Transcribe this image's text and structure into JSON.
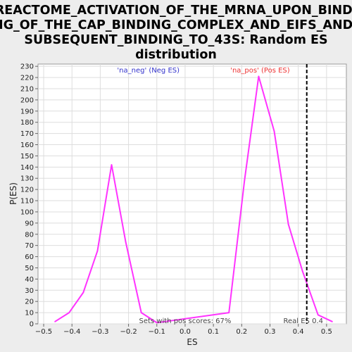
{
  "chart_data": {
    "type": "line",
    "title_lines": [
      "REACTOME_ACTIVATION_OF_THE_MRNA_UPON_BINDI",
      "NG_OF_THE_CAP_BINDING_COMPLEX_AND_EIFS_AND_",
      "SUBSEQUENT_BINDING_TO_43S: Random ES",
      "distribution"
    ],
    "xlabel": "ES",
    "ylabel": "P(ES)",
    "xlim": [
      -0.52,
      0.57
    ],
    "ylim": [
      0,
      232
    ],
    "x_ticks": [
      -0.5,
      -0.4,
      -0.3,
      -0.2,
      -0.1,
      0.0,
      0.1,
      0.2,
      0.3,
      0.4,
      0.5
    ],
    "x_tick_labels": [
      "−0.5",
      "−0.4",
      "−0.3",
      "−0.2",
      "−0.1",
      "0.0",
      "0.1",
      "0.2",
      "0.3",
      "0.4",
      "0.5"
    ],
    "y_ticks": [
      0,
      10,
      20,
      30,
      40,
      50,
      60,
      70,
      80,
      90,
      100,
      110,
      120,
      130,
      140,
      150,
      160,
      170,
      180,
      190,
      200,
      210,
      220,
      230
    ],
    "grid": true,
    "series": [
      {
        "color": "#ff33ff",
        "x": [
          -0.46,
          -0.41,
          -0.36,
          -0.31,
          -0.26,
          -0.21,
          -0.155,
          -0.1,
          0.155,
          0.21,
          0.26,
          0.315,
          0.365,
          0.415,
          0.47,
          0.52
        ],
        "y": [
          2,
          10,
          28,
          65,
          142,
          73,
          10,
          1,
          10,
          128,
          221,
          172,
          89,
          47,
          8,
          2
        ]
      }
    ],
    "real_es": 0.43,
    "legend": [
      {
        "label": "'na_neg' (Neg ES)",
        "color": "#3333cc"
      },
      {
        "label": "'na_pos' (Pos ES)",
        "color": "#ee3333"
      }
    ],
    "annotations": {
      "pos_scores": "Sets with pos scores: 67%",
      "real_es": "Real ES 0.4"
    }
  },
  "colors": {
    "plot_bg": "#ffffff",
    "page_bg": "#ededed",
    "grid": "#dddddd",
    "line": "#ff33ff",
    "marker": "#000000"
  }
}
